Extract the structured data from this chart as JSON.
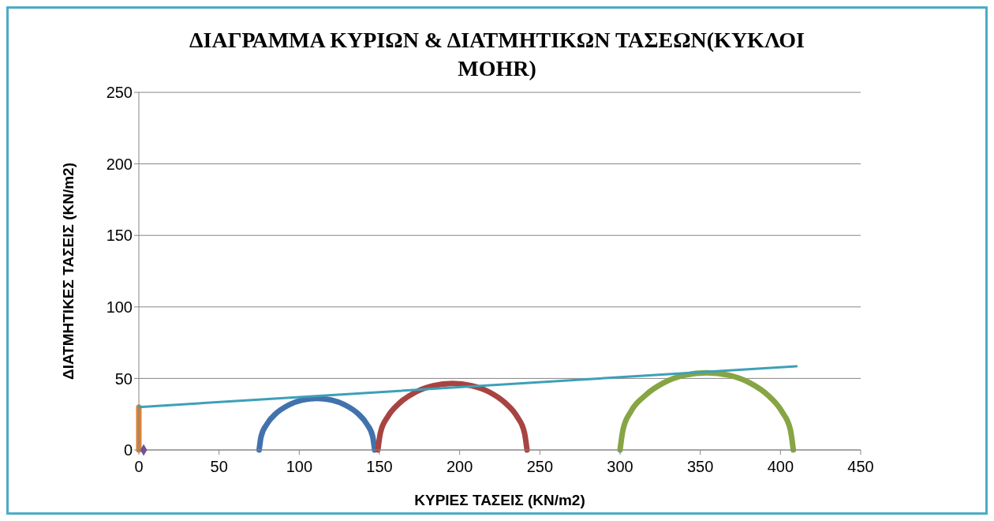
{
  "chart_data": {
    "type": "line",
    "title": "ΔΙΑΓΡΑΜΜΑ ΚΥΡΙΩΝ & ΔΙΑΤΜΗΤΙΚΩΝ ΤΑΣΕΩΝ(ΚΥΚΛΟΙ MOHR)",
    "xlabel": "ΚΥΡΙΕΣ ΤΑΣΕΙΣ (KN/m2)",
    "ylabel": "ΔΙΑΤΜΗΤΙΚΕΣ ΤΑΣΕΙΣ (KN/m2)",
    "xlim": [
      0,
      450
    ],
    "xticks": [
      0,
      50,
      100,
      150,
      200,
      250,
      300,
      350,
      400,
      450
    ],
    "ylim": [
      0,
      250
    ],
    "yticks": [
      0,
      50,
      100,
      150,
      200,
      250
    ],
    "grid": "y",
    "marker": "none",
    "series": [
      {
        "color": "#4272ae",
        "x": [
          75,
          76.2,
          79.8,
          85.5,
          93,
          101.7,
          111,
          120.3,
          129,
          136.5,
          142.2,
          145.8,
          147
        ],
        "values": [
          0,
          9.3,
          18,
          25.5,
          31.2,
          34.8,
          36,
          34.8,
          31.2,
          25.5,
          18,
          9.3,
          0
        ]
      },
      {
        "color": "#a74442",
        "x": [
          149,
          150.6,
          155.2,
          162.6,
          172.3,
          183.5,
          195.5,
          207.5,
          218.8,
          228.4,
          235.8,
          240.4,
          242
        ],
        "values": [
          0,
          12,
          23.3,
          32.9,
          40.3,
          44.9,
          46.5,
          44.9,
          40.3,
          32.9,
          23.3,
          12,
          0
        ]
      },
      {
        "color": "#86a543",
        "x": [
          300,
          301.8,
          306.8,
          315.8,
          327,
          340,
          354,
          368,
          381,
          392.2,
          400.8,
          406.2,
          408
        ],
        "values": [
          0,
          14,
          27,
          38.2,
          46.8,
          52.2,
          54,
          52.2,
          46.8,
          38.2,
          27,
          14,
          0
        ]
      },
      {
        "color": "#6e5396",
        "type": "scatter",
        "marker": "diamond",
        "x": [
          3
        ],
        "values": [
          0
        ]
      },
      {
        "color": "#db8136",
        "x": [
          0,
          0
        ],
        "values": [
          0,
          30
        ]
      },
      {
        "color": "#3da0b8",
        "x": [
          0,
          410
        ],
        "values": [
          30,
          58.5
        ]
      }
    ]
  }
}
